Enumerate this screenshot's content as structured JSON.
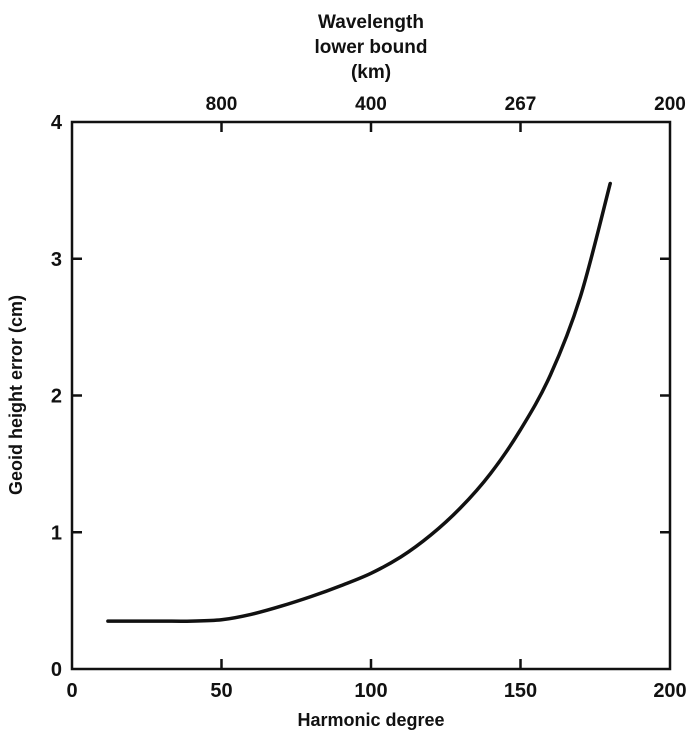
{
  "chart_data": {
    "type": "line",
    "title": "",
    "xlabel": "Harmonic degree",
    "ylabel": "Geoid height error (cm)",
    "top_axis_label_lines": [
      "Wavelength",
      "lower bound",
      "(km)"
    ],
    "xlim": [
      0,
      200
    ],
    "ylim": [
      0,
      4
    ],
    "x_ticks": [
      {
        "value": 0,
        "label": "0"
      },
      {
        "value": 50,
        "label": "50"
      },
      {
        "value": 100,
        "label": "100"
      },
      {
        "value": 150,
        "label": "150"
      },
      {
        "value": 200,
        "label": "200"
      }
    ],
    "y_ticks": [
      {
        "value": 0,
        "label": "0"
      },
      {
        "value": 1,
        "label": "1"
      },
      {
        "value": 2,
        "label": "2"
      },
      {
        "value": 3,
        "label": "3"
      },
      {
        "value": 4,
        "label": "4"
      }
    ],
    "top_ticks": [
      {
        "degree": 50,
        "label": "800"
      },
      {
        "degree": 100,
        "label": "400"
      },
      {
        "degree": 150,
        "label": "267"
      },
      {
        "degree": 200,
        "label": "200"
      }
    ],
    "grid": false,
    "series": [
      {
        "x": [
          12,
          20,
          30,
          40,
          50,
          60,
          70,
          80,
          90,
          100,
          110,
          120,
          130,
          140,
          150,
          160,
          170,
          180
        ],
        "y": [
          0.35,
          0.35,
          0.35,
          0.35,
          0.36,
          0.4,
          0.46,
          0.53,
          0.61,
          0.7,
          0.82,
          0.98,
          1.18,
          1.43,
          1.75,
          2.15,
          2.72,
          3.55
        ],
        "color": "#111111"
      }
    ]
  }
}
